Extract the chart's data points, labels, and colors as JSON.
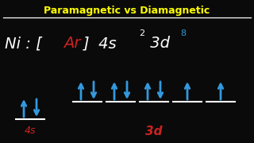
{
  "title": "Paramagnetic vs Diamagnetic",
  "title_color": "#FFFF00",
  "bg_color": "#0a0a0a",
  "white": "#FFFFFF",
  "blue": "#3399DD",
  "red": "#CC2222",
  "label_4s": "4s",
  "label_3d": "3d",
  "ni_label": "Ni : [",
  "ar_label": "Ar",
  "config_right": "] 4s",
  "sup2": "2",
  "config_3d": " 3d",
  "sup8": "8",
  "orbitals_3d": [
    {
      "up": true,
      "down": true
    },
    {
      "up": true,
      "down": true
    },
    {
      "up": true,
      "down": true
    },
    {
      "up": true,
      "down": false
    },
    {
      "up": true,
      "down": false
    }
  ]
}
